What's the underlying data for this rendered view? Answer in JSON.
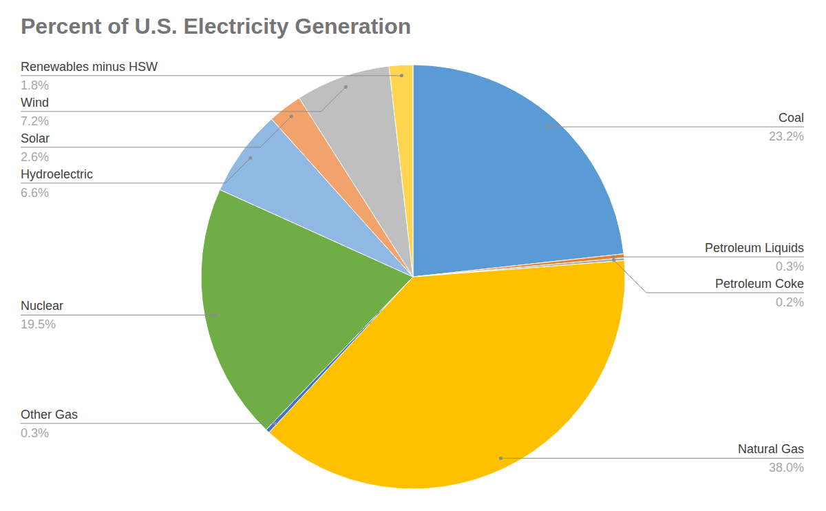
{
  "chart_data": {
    "type": "pie",
    "title": "Percent of U.S. Electricity Generation",
    "categories": [
      "Coal",
      "Petroleum Liquids",
      "Petroleum Coke",
      "Natural Gas",
      "Other Gas",
      "Nuclear",
      "Hydroelectric",
      "Solar",
      "Wind",
      "Renewables minus HSW"
    ],
    "values": [
      23.2,
      0.3,
      0.2,
      38.0,
      0.3,
      19.5,
      6.6,
      2.6,
      7.2,
      1.8
    ],
    "value_labels": [
      "23.2%",
      "0.3%",
      "0.2%",
      "38.0%",
      "0.3%",
      "19.5%",
      "6.6%",
      "2.6%",
      "7.2%",
      "1.8%"
    ],
    "colors": [
      "#5b9bd5",
      "#ed7d31",
      "#a5a5a5",
      "#ffc000",
      "#4472c4",
      "#70ad47",
      "#8fb9e2",
      "#f2a36c",
      "#bfbfbf",
      "#ffd54f"
    ],
    "data_labels": true
  }
}
